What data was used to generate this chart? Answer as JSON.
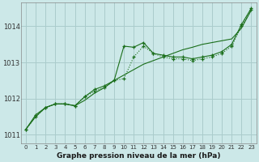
{
  "background_color": "#cce8e8",
  "grid_color": "#aacccc",
  "line_color": "#1a6e1a",
  "title": "Graphe pression niveau de la mer (hPa)",
  "xlim": [
    -0.5,
    23.5
  ],
  "ylim": [
    1010.75,
    1014.65
  ],
  "yticks": [
    1011,
    1012,
    1013,
    1014
  ],
  "xticks": [
    0,
    1,
    2,
    3,
    4,
    5,
    6,
    7,
    8,
    9,
    10,
    11,
    12,
    13,
    14,
    15,
    16,
    17,
    18,
    19,
    20,
    21,
    22,
    23
  ],
  "series1_x": [
    0,
    1,
    2,
    3,
    4,
    5,
    6,
    7,
    8,
    9,
    10,
    11,
    12,
    13,
    14,
    15,
    16,
    17,
    18,
    19,
    20,
    21,
    22,
    23
  ],
  "series1_y": [
    1011.15,
    1011.55,
    1011.75,
    1011.85,
    1011.85,
    1011.8,
    1012.05,
    1012.25,
    1012.35,
    1012.5,
    1013.45,
    1013.42,
    1013.55,
    1013.25,
    1013.2,
    1013.15,
    1013.15,
    1013.1,
    1013.15,
    1013.2,
    1013.3,
    1013.5,
    1014.05,
    1014.5
  ],
  "series2_x": [
    0,
    1,
    2,
    3,
    4,
    5,
    6,
    7,
    8,
    9,
    10,
    11,
    12,
    13,
    14,
    15,
    16,
    17,
    18,
    19,
    20,
    21,
    22,
    23
  ],
  "series2_y": [
    1011.15,
    1011.5,
    1011.75,
    1011.85,
    1011.85,
    1011.8,
    1012.05,
    1012.2,
    1012.3,
    1012.5,
    1012.55,
    1013.15,
    1013.45,
    1013.25,
    1013.15,
    1013.1,
    1013.1,
    1013.05,
    1013.1,
    1013.15,
    1013.25,
    1013.45,
    1014.0,
    1014.45
  ],
  "series3_x": [
    0,
    1,
    2,
    3,
    4,
    5,
    6,
    7,
    8,
    9,
    10,
    11,
    12,
    13,
    14,
    15,
    16,
    17,
    18,
    19,
    20,
    21,
    22,
    23
  ],
  "series3_y": [
    1011.15,
    1011.5,
    1011.75,
    1011.85,
    1011.85,
    1011.8,
    1011.95,
    1012.15,
    1012.3,
    1012.5,
    1012.65,
    1012.8,
    1012.95,
    1013.05,
    1013.15,
    1013.25,
    1013.35,
    1013.42,
    1013.5,
    1013.55,
    1013.6,
    1013.65,
    1013.95,
    1014.45
  ]
}
